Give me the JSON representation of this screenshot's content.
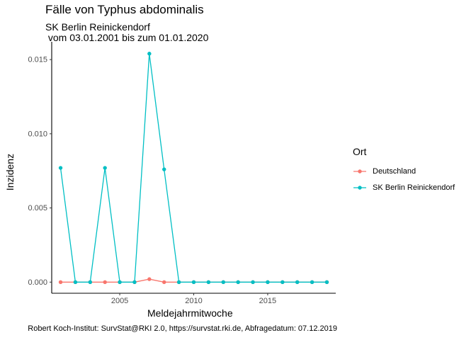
{
  "chart_data": {
    "type": "line",
    "title": "Fälle von Typhus abdominalis",
    "subtitle": "SK Berlin Reinickendorf\n vom 03.01.2001 bis zum 01.01.2020",
    "xlabel": "Meldejahrmitwoche",
    "ylabel": "Inzidenz",
    "caption": "Robert Koch-Institut: SurvStat@RKI 2.0, https://survstat.rki.de, Abfragedatum: 07.12.2019",
    "xlim": [
      2000.4,
      2019.6
    ],
    "ylim": [
      -0.00075,
      0.0162
    ],
    "x_ticks": [
      2005,
      2010,
      2015
    ],
    "x_tick_labels": [
      "2005",
      "2010",
      "2015"
    ],
    "y_ticks": [
      0,
      0.005,
      0.01,
      0.015
    ],
    "y_tick_labels": [
      "0.000",
      "0.005",
      "0.010",
      "0.015"
    ],
    "grid": false,
    "legend": {
      "title": "Ort",
      "position": "right"
    },
    "x": [
      2001,
      2002,
      2003,
      2004,
      2005,
      2006,
      2007,
      2008,
      2009,
      2010,
      2011,
      2012,
      2013,
      2014,
      2015,
      2016,
      2017,
      2018,
      2019
    ],
    "series": [
      {
        "name": "Deutschland",
        "color": "#F8766D",
        "values": [
          0.0,
          0.0,
          0.0,
          0.0,
          0.0,
          0.0,
          0.0002,
          0.0,
          0.0,
          0.0,
          0.0,
          0.0,
          0.0,
          0.0,
          0.0,
          0.0,
          0.0,
          0.0,
          0.0
        ]
      },
      {
        "name": "SK Berlin Reinickendorf",
        "color": "#00BFC4",
        "values": [
          0.0077,
          0.0,
          0.0,
          0.0077,
          0.0,
          0.0,
          0.0154,
          0.0076,
          0.0,
          0.0,
          0.0,
          0.0,
          0.0,
          0.0,
          0.0,
          0.0,
          0.0,
          0.0,
          0.0
        ]
      }
    ]
  }
}
